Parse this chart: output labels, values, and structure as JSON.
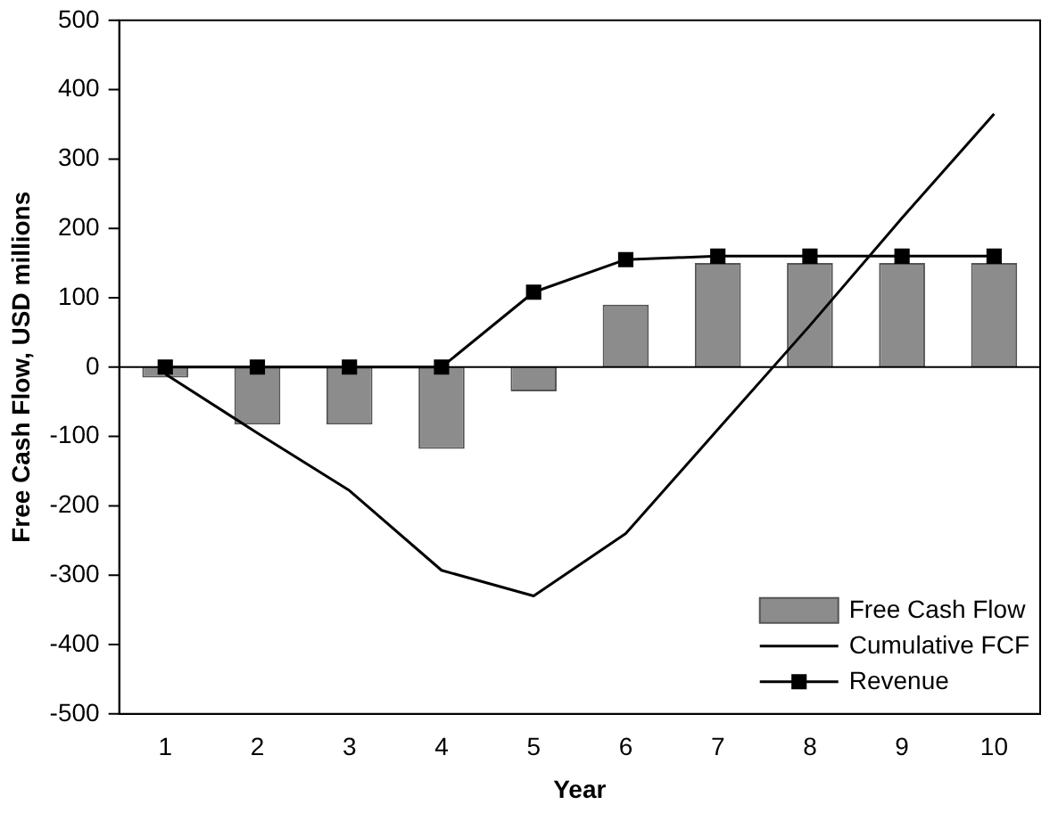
{
  "chart_data": {
    "type": "bar",
    "xlabel": "Year",
    "ylabel": "Free Cash Flow, USD millions",
    "categories": [
      "1",
      "2",
      "3",
      "4",
      "5",
      "6",
      "7",
      "8",
      "9",
      "10"
    ],
    "series": [
      {
        "name": "Free Cash Flow",
        "color": "#8c8c8c",
        "values": [
          -15,
          -83,
          -83,
          -118,
          -35,
          90,
          150,
          150,
          150,
          150
        ]
      },
      {
        "name": "Cumulative FCF",
        "type": "line",
        "color": "#000000",
        "marker": "none",
        "values": [
          -10,
          -95,
          -178,
          -293,
          -330,
          -240,
          -90,
          60,
          215,
          365
        ]
      },
      {
        "name": "Revenue",
        "type": "line",
        "color": "#000000",
        "marker": "square",
        "values": [
          0,
          0,
          0,
          0,
          108,
          155,
          160,
          160,
          160,
          160
        ]
      }
    ],
    "ylim": [
      -500,
      500
    ],
    "yticks": [
      -500,
      -400,
      -300,
      -200,
      -100,
      0,
      100,
      200,
      300,
      400,
      500
    ],
    "ref_lines": [
      {
        "axis": "y",
        "value": 0,
        "color": "#000000"
      }
    ],
    "grid": false,
    "legend": "bottom right"
  }
}
